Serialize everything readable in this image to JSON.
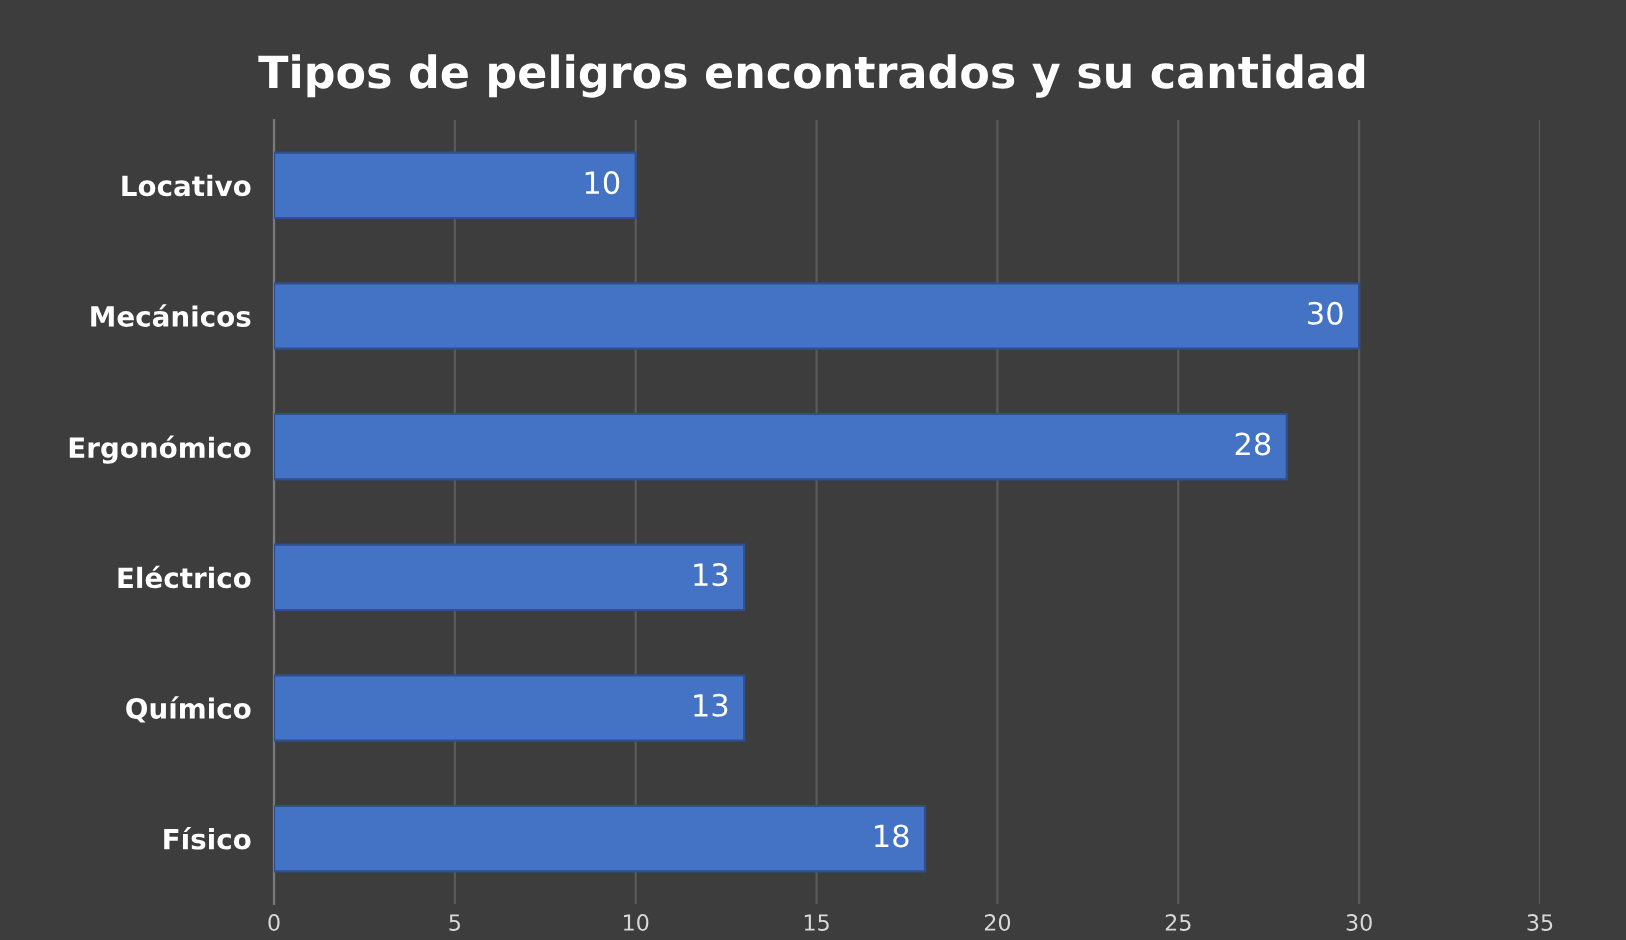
{
  "chart_data": {
    "type": "bar",
    "orientation": "horizontal",
    "title": "Tipos de peligros encontrados y su cantidad",
    "categories": [
      "Locativo",
      "Mecánicos",
      "Ergonómico",
      "Eléctrico",
      "Químico",
      "Físico"
    ],
    "values": [
      10,
      30,
      28,
      13,
      13,
      18
    ],
    "color": "#4472c4",
    "xlim": [
      0,
      35
    ],
    "xticks": [
      0,
      5,
      10,
      15,
      20,
      25,
      30,
      35
    ],
    "grid": "x",
    "data_labels": true
  }
}
